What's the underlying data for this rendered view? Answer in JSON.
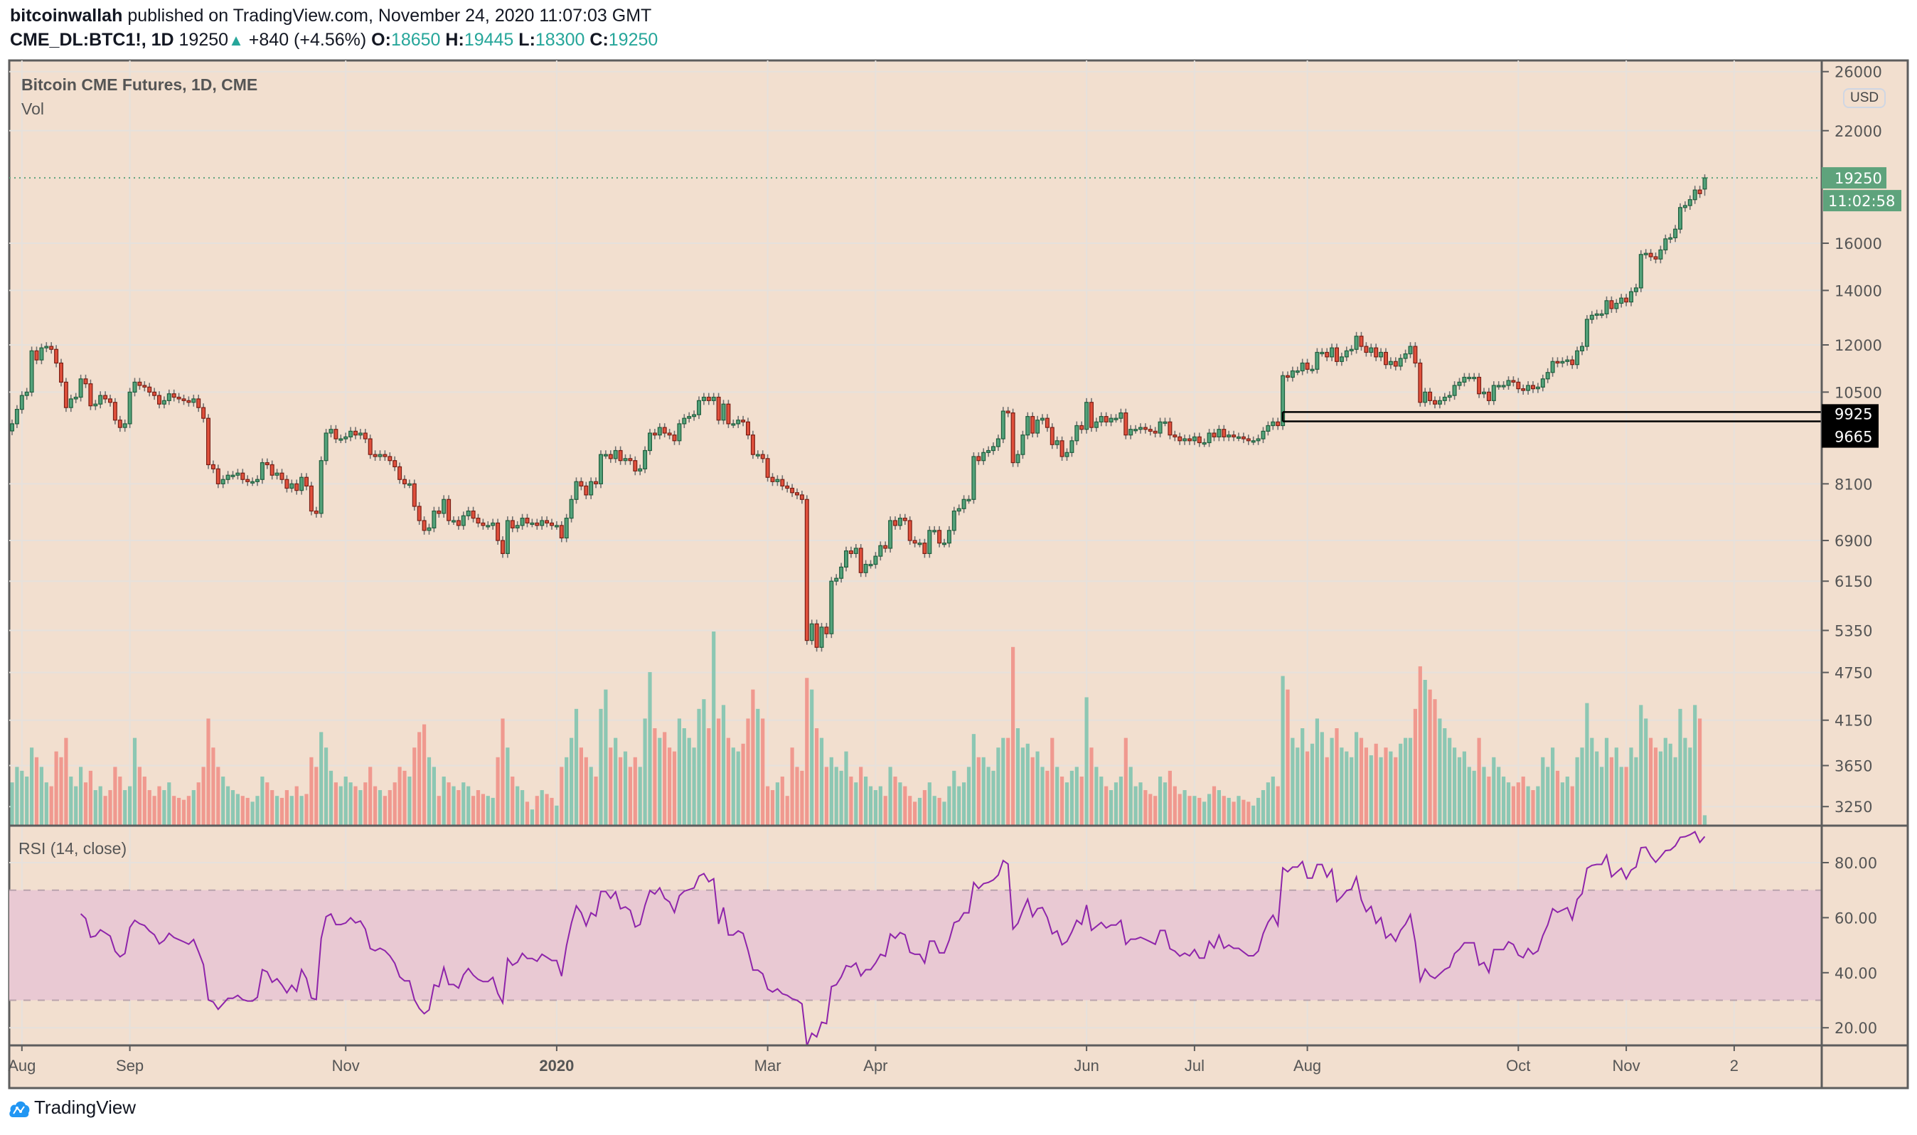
{
  "header": {
    "author": "bitcoinwallah",
    "published_text": "published on TradingView.com, November 24, 2020 11:07:03 GMT",
    "symbol": "CME_DL:BTC1!, 1D",
    "last": "19250",
    "change": "+840 (+4.56%)",
    "o_label": "O:",
    "o": "18650",
    "h_label": "H:",
    "h": "19445",
    "l_label": "L:",
    "l": "18300",
    "c_label": "C:",
    "c": "19250"
  },
  "legend": {
    "title": "Bitcoin CME Futures, 1D, CME",
    "volume": "Vol",
    "rsi": "RSI (14, close)"
  },
  "currency": "USD",
  "countdown": "11:02:58",
  "logo_text": "TradingView",
  "colors": {
    "background": "#f2dfcf",
    "up": "#53a27a",
    "down": "#e0503c",
    "up_volume": "#8cc7b3",
    "down_volume": "#f0998f",
    "rsi_line": "#8e24aa",
    "rsi_band": "#e9c9d3",
    "last_price": "#5ea37c",
    "level_line": "#000000",
    "logo": "#2196f3"
  },
  "chart_data": {
    "type": "candlestick",
    "title": "Bitcoin CME Futures, 1D, CME",
    "y_scale": "log",
    "ylim": [
      3000,
      26000
    ],
    "grid": true,
    "last_bar": {
      "open": 18650,
      "high": 19445,
      "low": 18300,
      "close": 19250
    },
    "last_price_label": "19250",
    "levels": [
      {
        "price": 9925,
        "label": "9925",
        "from": "2020-07-27"
      },
      {
        "price": 9665,
        "label": "9665",
        "from": "2020-07-27"
      }
    ],
    "price_ticks": [
      "26000",
      "22000",
      "16000",
      "14000",
      "12000",
      "10500",
      "8100",
      "6900",
      "6150",
      "5350",
      "4750",
      "4150",
      "3650",
      "3250"
    ],
    "rsi": {
      "period": 14,
      "source": "close",
      "upper": 70,
      "lower": 30,
      "ylim": [
        12,
        95
      ]
    },
    "rsi_ticks": [
      "80.00",
      "60.00",
      "40.00",
      "20.00"
    ],
    "x_ticks": [
      {
        "label": "Aug",
        "date": "2019-08-01"
      },
      {
        "label": "Sep",
        "date": "2019-09-02"
      },
      {
        "label": "Nov",
        "date": "2019-11-01"
      },
      {
        "label": "2020",
        "date": "2020-01-01"
      },
      {
        "label": "Mar",
        "date": "2020-03-02"
      },
      {
        "label": "Apr",
        "date": "2020-04-01"
      },
      {
        "label": "Jun",
        "date": "2020-06-01"
      },
      {
        "label": "Jul",
        "date": "2020-07-01"
      },
      {
        "label": "Aug",
        "date": "2020-08-03"
      },
      {
        "label": "Oct",
        "date": "2020-10-01"
      },
      {
        "label": "Nov",
        "date": "2020-11-02"
      },
      {
        "label": "2",
        "date": "2020-12-02"
      }
    ],
    "months": [
      {
        "month": "2019-07",
        "close": [
          9600,
          10000
        ],
        "volume": [
          22,
          30
        ]
      },
      {
        "month": "2019-08",
        "close": [
          10400,
          10500,
          11800,
          11500,
          11900,
          11950,
          11850,
          11400,
          10800,
          10050,
          10300,
          10350,
          10900,
          10750,
          10100,
          10150,
          10400,
          10300,
          10200,
          9700,
          9500,
          9600
        ],
        "volume": [
          28,
          25,
          40,
          35,
          30,
          22,
          20,
          38,
          35,
          45,
          25,
          20,
          30,
          22,
          28,
          18,
          20,
          15,
          18,
          30,
          25,
          18
        ]
      },
      {
        "month": "2019-09",
        "close": [
          10500,
          10800,
          10700,
          10650,
          10500,
          10400,
          10150,
          10250,
          10450,
          10350,
          10300,
          10250,
          10200,
          10300,
          10050,
          9750,
          8550,
          8450,
          8100,
          8200,
          8300
        ],
        "volume": [
          20,
          45,
          30,
          25,
          18,
          15,
          20,
          18,
          22,
          15,
          14,
          13,
          15,
          18,
          22,
          30,
          55,
          40,
          30,
          25,
          20
        ]
      },
      {
        "month": "2019-10",
        "close": [
          8300,
          8350,
          8200,
          8150,
          8150,
          8200,
          8600,
          8550,
          8300,
          8350,
          8200,
          8000,
          8100,
          7950,
          8250,
          8050,
          7500,
          7450,
          8650,
          9350,
          9450,
          9200,
          9200
        ],
        "volume": [
          18,
          16,
          15,
          14,
          12,
          15,
          25,
          22,
          18,
          15,
          14,
          18,
          15,
          20,
          15,
          16,
          35,
          30,
          48,
          40,
          28,
          22,
          20
        ]
      },
      {
        "month": "2019-11",
        "close": [
          9250,
          9400,
          9300,
          9350,
          9200,
          8800,
          8750,
          8800,
          8750,
          8650,
          8500,
          8200,
          8100,
          8100,
          7600,
          7300,
          7100,
          7150,
          7500,
          7450,
          7750
        ],
        "volume": [
          25,
          22,
          20,
          18,
          22,
          30,
          20,
          18,
          15,
          18,
          22,
          30,
          28,
          25,
          40,
          48,
          52,
          35,
          30,
          15,
          25
        ]
      },
      {
        "month": "2019-12",
        "close": [
          7300,
          7300,
          7200,
          7400,
          7500,
          7350,
          7250,
          7200,
          7200,
          7250,
          6900,
          6650,
          7300,
          7150,
          7200,
          7350,
          7250,
          7250,
          7200,
          7300,
          7250,
          7200
        ],
        "volume": [
          22,
          20,
          18,
          22,
          20,
          15,
          18,
          16,
          15,
          14,
          35,
          55,
          40,
          25,
          20,
          18,
          12,
          8,
          15,
          18,
          16,
          14
        ]
      },
      {
        "month": "2020-01",
        "close": [
          7200,
          6950,
          7350,
          7750,
          8150,
          8050,
          7850,
          8150,
          8100,
          8800,
          8800,
          8700,
          8900,
          8650,
          8700,
          8650,
          8400,
          8450,
          8900,
          9350,
          9300,
          9500,
          9350
        ],
        "volume": [
          10,
          30,
          35,
          45,
          60,
          40,
          35,
          30,
          25,
          60,
          70,
          40,
          45,
          35,
          38,
          30,
          35,
          30,
          55,
          79,
          50,
          45,
          48
        ]
      },
      {
        "month": "2020-02",
        "close": [
          9300,
          9150,
          9600,
          9750,
          9800,
          9850,
          10250,
          10350,
          10250,
          10350,
          9700,
          10150,
          9600,
          9600,
          9700,
          9650,
          9300,
          8800,
          8800,
          8700
        ],
        "volume": [
          40,
          38,
          55,
          50,
          45,
          40,
          60,
          65,
          50,
          100,
          55,
          62,
          45,
          40,
          38,
          42,
          55,
          70,
          60,
          55
        ]
      },
      {
        "month": "2020-03",
        "close": [
          8250,
          8150,
          8200,
          8050,
          8000,
          7900,
          7850,
          7750,
          5200,
          5450,
          5100,
          5400,
          5300,
          6150,
          6200,
          6400,
          6700,
          6650,
          6750,
          6300,
          6450,
          6450
        ],
        "volume": [
          20,
          18,
          22,
          25,
          15,
          40,
          30,
          28,
          76,
          70,
          50,
          45,
          30,
          35,
          30,
          28,
          38,
          25,
          22,
          30,
          25,
          20
        ]
      },
      {
        "month": "2020-04",
        "close": [
          6600,
          6800,
          6750,
          7300,
          7200,
          7350,
          7300,
          6900,
          6850,
          6850,
          6650,
          7100,
          7100,
          6850,
          6850,
          7100,
          7500,
          7550,
          7750,
          7750,
          8750,
          8650
        ],
        "volume": [
          18,
          20,
          15,
          30,
          25,
          22,
          20,
          15,
          12,
          14,
          18,
          22,
          15,
          14,
          12,
          20,
          28,
          20,
          22,
          30,
          47,
          35
        ]
      },
      {
        "month": "2020-05",
        "close": [
          8850,
          8900,
          9000,
          9200,
          9950,
          9900,
          8600,
          8800,
          9300,
          9800,
          9350,
          9700,
          9750,
          9500,
          9050,
          9150,
          8750,
          8850,
          9150,
          9550,
          9450
        ],
        "volume": [
          35,
          30,
          28,
          40,
          45,
          45,
          92,
          50,
          40,
          42,
          35,
          38,
          30,
          28,
          45,
          30,
          25,
          22,
          28,
          30,
          25
        ]
      },
      {
        "month": "2020-06",
        "close": [
          10200,
          9500,
          9650,
          9800,
          9650,
          9750,
          9750,
          9900,
          9300,
          9450,
          9450,
          9500,
          9450,
          9400,
          9350,
          9650,
          9650,
          9300,
          9250,
          9150,
          9200,
          9150
        ],
        "volume": [
          66,
          40,
          30,
          25,
          20,
          18,
          22,
          25,
          45,
          30,
          20,
          22,
          18,
          16,
          15,
          25,
          22,
          28,
          20,
          16,
          18,
          15
        ]
      },
      {
        "month": "2020-07",
        "close": [
          9250,
          9100,
          9100,
          9350,
          9250,
          9450,
          9250,
          9300,
          9250,
          9250,
          9200,
          9150,
          9150,
          9200,
          9400,
          9550,
          9650,
          9550,
          11000,
          10950,
          11150,
          11150,
          11400
        ],
        "volume": [
          15,
          14,
          12,
          16,
          20,
          18,
          15,
          14,
          12,
          15,
          13,
          12,
          10,
          14,
          18,
          22,
          25,
          20,
          77,
          70,
          45,
          40,
          50
        ]
      },
      {
        "month": "2020-08",
        "close": [
          11200,
          11200,
          11750,
          11750,
          11600,
          11900,
          11450,
          11600,
          11800,
          11850,
          12300,
          11950,
          11750,
          11900,
          11600,
          11750,
          11350,
          11450,
          11300,
          11550,
          11700
        ],
        "volume": [
          38,
          42,
          55,
          48,
          35,
          45,
          50,
          40,
          38,
          35,
          48,
          45,
          40,
          36,
          42,
          35,
          40,
          38,
          35,
          42,
          45
        ]
      },
      {
        "month": "2020-09",
        "close": [
          11950,
          11400,
          10200,
          10500,
          10250,
          10150,
          10250,
          10350,
          10400,
          10700,
          10800,
          10950,
          10950,
          10950,
          10450,
          10500,
          10250,
          10700,
          10700,
          10700,
          10850,
          10800
        ],
        "volume": [
          45,
          60,
          82,
          75,
          70,
          65,
          55,
          50,
          45,
          40,
          35,
          38,
          30,
          28,
          45,
          30,
          25,
          35,
          30,
          25,
          22,
          20
        ]
      },
      {
        "month": "2020-10",
        "close": [
          10600,
          10550,
          10700,
          10600,
          10650,
          10900,
          11100,
          11450,
          11400,
          11450,
          11500,
          11350,
          11800,
          11950,
          12900,
          13050,
          13100,
          13100,
          13600,
          13300,
          13500,
          13700
        ],
        "volume": [
          22,
          25,
          20,
          18,
          20,
          35,
          30,
          40,
          28,
          22,
          25,
          20,
          35,
          40,
          63,
          45,
          38,
          30,
          45,
          35,
          40,
          30
        ]
      },
      {
        "month": "2020-11",
        "close": [
          13550,
          13950,
          14100,
          15500,
          15550,
          15400,
          15300,
          15700,
          16200,
          16250,
          16650,
          17700,
          17800,
          18100,
          18600,
          18410,
          19250
        ],
        "volume": [
          30,
          40,
          35,
          62,
          55,
          45,
          40,
          38,
          45,
          42,
          35,
          60,
          45,
          40,
          62,
          55,
          5
        ]
      }
    ]
  }
}
